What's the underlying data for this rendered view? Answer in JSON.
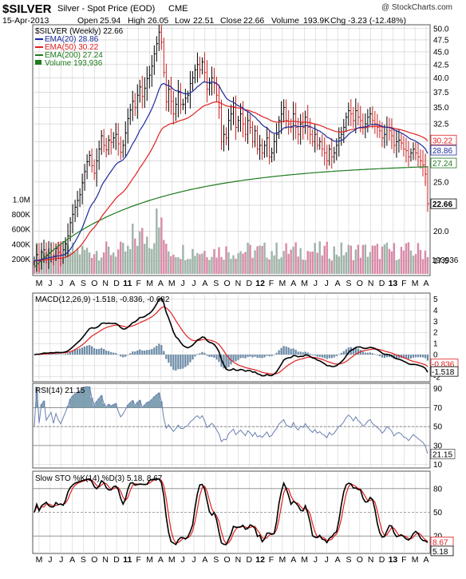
{
  "header": {
    "symbol": "$SILVER",
    "name": "Silver - Spot Price (EOD)",
    "exchange": "CME",
    "watermark": "@ StockCharts.com",
    "date": "15-Apr-2013",
    "quote": {
      "open_label": "Open",
      "open": "25.94",
      "high_label": "High",
      "high": "26.05",
      "low_label": "Low",
      "low": "22.51",
      "close_label": "Close",
      "close": "22.66",
      "volume_label": "Volume",
      "volume": "193.9K",
      "chg_label": "Chg",
      "chg": "-3.23 (-12.48%)"
    }
  },
  "colors": {
    "price": "#000000",
    "ema20": "#1c2c9c",
    "ema50": "#e02020",
    "ema200": "#1e7a1e",
    "volume_down": "#d98aa8",
    "volume_up": "#9fb4a8",
    "histogram": "#6b8aa6",
    "rsi_fill": "#5f8aa0",
    "grid": "#c8c8c8",
    "panel_bg": "#ffffff"
  },
  "chart_data": [
    {
      "type": "candlestick",
      "title": "$SILVER (Weekly) 22.66",
      "legend": [
        {
          "label": "EMA(20) 28.86",
          "color": "#1c2c9c"
        },
        {
          "label": "EMA(50) 30.22",
          "color": "#e02020"
        },
        {
          "label": "EMA(200) 27.24",
          "color": "#1e7a1e"
        },
        {
          "label": "Volume 193,936",
          "color": "#1e7a1e"
        }
      ],
      "legend_position": "top-left",
      "x_labels": [
        "M",
        "J",
        "J",
        "A",
        "S",
        "O",
        "N",
        "D",
        "11",
        "F",
        "M",
        "A",
        "M",
        "J",
        "J",
        "A",
        "S",
        "O",
        "N",
        "D",
        "12",
        "F",
        "M",
        "A",
        "M",
        "J",
        "J",
        "A",
        "S",
        "O",
        "N",
        "D",
        "13",
        "F",
        "M",
        "A"
      ],
      "y_ticks": [
        17.5,
        20.0,
        22.5,
        25.0,
        27.5,
        30.0,
        32.5,
        35.0,
        37.5,
        40.0,
        42.5,
        45.0,
        47.5,
        50.0
      ],
      "y_tick_labels": [
        "17.5",
        "20.0",
        "22.5",
        "25.0",
        "27.5",
        "30.0",
        "32.5",
        "35.0",
        "37.5",
        "40.0",
        "42.5",
        "45.0",
        "47.5",
        "50.0"
      ],
      "ylim": [
        16.5,
        50.5
      ],
      "y_scale": "log",
      "value_labels": [
        {
          "text": "30.22",
          "value": 30.22,
          "color": "#e02020"
        },
        {
          "text": "28.86",
          "value": 28.86,
          "color": "#1c2c9c"
        },
        {
          "text": "27.24",
          "value": 27.24,
          "color": "#1e7a1e"
        },
        {
          "text": "22.66",
          "value": 22.66,
          "color": "#000000"
        }
      ],
      "close": [
        17.5,
        18.0,
        17.6,
        18.2,
        18.4,
        17.9,
        18.1,
        18.3,
        17.9,
        18.5,
        18.2,
        18.0,
        18.4,
        18.9,
        19.6,
        20.8,
        21.6,
        22.3,
        23.0,
        23.6,
        24.9,
        26.2,
        27.4,
        28.2,
        26.9,
        26.0,
        27.5,
        29.0,
        30.8,
        29.5,
        28.9,
        30.2,
        29.9,
        30.5,
        31.0,
        29.7,
        28.6,
        29.5,
        31.2,
        33.3,
        34.6,
        36.0,
        35.0,
        37.0,
        38.4,
        36.8,
        38.2,
        39.9,
        40.5,
        42.2,
        44.6,
        46.7,
        49.2,
        47.0,
        41.0,
        35.9,
        38.0,
        36.0,
        34.0,
        35.5,
        37.5,
        35.5,
        35.5,
        36.5,
        37.0,
        39.0,
        40.0,
        41.5,
        42.5,
        41.5,
        43.0,
        41.0,
        38.0,
        39.0,
        40.0,
        39.0,
        37.0,
        35.0,
        30.0,
        31.0,
        30.5,
        33.0,
        34.0,
        35.0,
        32.0,
        33.0,
        34.0,
        32.5,
        31.0,
        33.0,
        32.0,
        30.0,
        31.5,
        29.0,
        29.5,
        28.5,
        29.5,
        30.5,
        28.0,
        28.5,
        30.0,
        31.0,
        33.0,
        34.0,
        35.0,
        33.0,
        32.5,
        32.0,
        34.0,
        32.0,
        31.0,
        32.5,
        32.0,
        33.5,
        32.0,
        31.0,
        30.0,
        31.0,
        29.5,
        30.0,
        29.0,
        28.5,
        27.5,
        29.0,
        28.0,
        28.5,
        29.5,
        30.5,
        31.0,
        32.0,
        33.5,
        34.5,
        34.0,
        33.0,
        34.5,
        33.5,
        33.0,
        32.0,
        32.5,
        33.5,
        34.0,
        33.0,
        32.5,
        32.0,
        31.5,
        30.5,
        31.0,
        32.0,
        31.5,
        30.8,
        29.5,
        30.0,
        30.2,
        29.8,
        29.0,
        28.8,
        28.0,
        28.5,
        29.0,
        28.5,
        28.0,
        27.5,
        27.0,
        25.9,
        22.66
      ],
      "volume_ticks": [
        "200K",
        "400K",
        "600K",
        "800K",
        "1.0M"
      ],
      "volume_scale": [
        0,
        1000000
      ],
      "volume_value_label": "193936"
    },
    {
      "type": "line",
      "title": "MACD(12,26,9) -1.518, -0.836, -0.682",
      "series": [
        {
          "name": "MACD(12,26,9)",
          "value": "-1.518",
          "color": "#000000"
        },
        {
          "name": "signal",
          "value": "-0.836",
          "color": "#e02020"
        },
        {
          "name": "histogram",
          "value": "-0.682",
          "color": "#5f8aa0"
        }
      ],
      "y_ticks": [
        -2,
        -1,
        0,
        1,
        2,
        3,
        4,
        5
      ],
      "ylim": [
        -2.3,
        5.4
      ],
      "value_labels": [
        {
          "text": "-0.836",
          "value": -0.836,
          "color": "#e02020"
        },
        {
          "text": "-1.518",
          "value": -1.518,
          "color": "#000000"
        }
      ]
    },
    {
      "type": "line",
      "title": "RSI(14) 21.15",
      "y_ticks": [
        10,
        30,
        50,
        70,
        90
      ],
      "ylim": [
        8,
        94
      ],
      "levels": [
        30,
        50,
        70
      ],
      "value_labels": [
        {
          "text": "21.15",
          "value": 21.15,
          "color": "#000000"
        }
      ]
    },
    {
      "type": "line",
      "title": "Slow STO %K(14) %D(3) 5.18, 8.67",
      "series": [
        {
          "name": "%K(14)",
          "value": "5.18",
          "color": "#000000"
        },
        {
          "name": "%D(3)",
          "value": "8.67",
          "color": "#e02020"
        }
      ],
      "y_ticks": [
        20,
        50,
        80
      ],
      "ylim": [
        0,
        100
      ],
      "levels": [
        20,
        50,
        80
      ],
      "value_labels": [
        {
          "text": "8.67",
          "value": 8.67,
          "color": "#e02020"
        },
        {
          "text": "5.18",
          "value": 5.18,
          "color": "#000000"
        }
      ]
    }
  ]
}
